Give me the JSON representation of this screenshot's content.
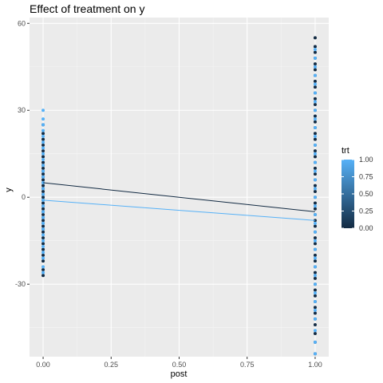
{
  "chart_data": {
    "type": "scatter",
    "title": "Effect of treatment on y",
    "xlabel": "post",
    "ylabel": "y",
    "xlim": [
      -0.05,
      1.05
    ],
    "ylim": [
      -55,
      62
    ],
    "x_ticks": [
      {
        "value": 0,
        "label": "0.00"
      },
      {
        "value": 0.25,
        "label": "0.25"
      },
      {
        "value": 0.5,
        "label": "0.50"
      },
      {
        "value": 0.75,
        "label": "0.75"
      },
      {
        "value": 1,
        "label": "1.00"
      }
    ],
    "y_ticks": [
      {
        "value": -30,
        "label": "-30"
      },
      {
        "value": 0,
        "label": "0"
      },
      {
        "value": 30,
        "label": "30"
      },
      {
        "value": 60,
        "label": "60"
      }
    ],
    "grid": true,
    "background": "#ebebeb",
    "legend": {
      "title": "trt",
      "placement": "right",
      "type": "colorbar",
      "range": [
        0,
        1
      ],
      "ticks": [
        {
          "value": 1,
          "label": "1.00"
        },
        {
          "value": 0.75,
          "label": "0.75"
        },
        {
          "value": 0.5,
          "label": "0.50"
        },
        {
          "value": 0.25,
          "label": "0.25"
        },
        {
          "value": 0,
          "label": "0.00"
        }
      ],
      "color_low": "#132b43",
      "color_high": "#56b1f7"
    },
    "series": [
      {
        "trt": 0,
        "color": "#132b43",
        "fit_line": [
          {
            "x": 0,
            "y": 5
          },
          {
            "x": 1,
            "y": -5
          }
        ],
        "points_x0": [
          -27,
          -25,
          -22,
          -20,
          -18,
          -16,
          -14,
          -12,
          -11,
          -10,
          -9,
          -8,
          -7,
          -6,
          -5,
          -4,
          -3,
          -2,
          -1,
          0,
          1,
          2,
          3,
          4,
          5,
          6,
          7,
          8,
          9,
          10,
          11,
          12,
          14,
          16,
          18,
          20,
          22,
          25
        ],
        "points_x1": [
          -54,
          -50,
          -47,
          -44,
          -42,
          -40,
          -38,
          -36,
          -34,
          -32,
          -30,
          -28,
          -26,
          -24,
          -22,
          -20,
          -18,
          -16,
          -14,
          -12,
          -10,
          -8,
          -6,
          -4,
          -2,
          0,
          2,
          4,
          6,
          8,
          10,
          12,
          14,
          16,
          18,
          20,
          22,
          24,
          26,
          28,
          30,
          32,
          34,
          36,
          38,
          40,
          42,
          44,
          46,
          48,
          50,
          52,
          55
        ]
      },
      {
        "trt": 1,
        "color": "#56b1f7",
        "fit_line": [
          {
            "x": 0,
            "y": -1
          },
          {
            "x": 1,
            "y": -8
          }
        ],
        "points_x0": [
          -26,
          -24,
          -21,
          -19,
          -17,
          -15,
          -13,
          -11,
          -9,
          -7,
          -5,
          -3,
          -1,
          1,
          3,
          5,
          7,
          9,
          11,
          13,
          15,
          17,
          19,
          21,
          23,
          25,
          27,
          30
        ],
        "points_x1": [
          -54,
          -50,
          -46,
          -42,
          -39,
          -36,
          -33,
          -30,
          -27,
          -24,
          -21,
          -18,
          -15,
          -12,
          -9,
          -6,
          -3,
          0,
          3,
          6,
          9,
          12,
          15,
          18,
          21,
          24,
          27,
          30,
          33,
          36,
          39,
          42,
          45,
          48,
          51
        ]
      }
    ]
  }
}
